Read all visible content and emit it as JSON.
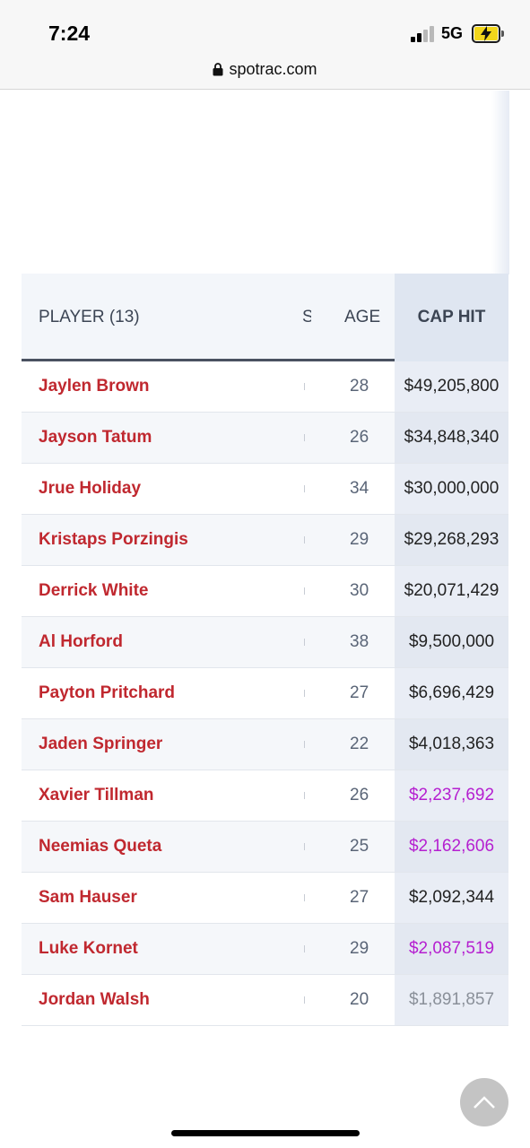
{
  "status_bar": {
    "time": "7:24",
    "network": "5G",
    "battery_charging": true,
    "signal_bars_filled": 2,
    "signal_bars_total": 4
  },
  "browser": {
    "url": "spotrac.com"
  },
  "table": {
    "headers": {
      "player": "PLAYER (13)",
      "partial": "S",
      "age": "AGE",
      "cap_hit": "CAP HIT"
    },
    "rows": [
      {
        "player": "Jaylen Brown",
        "age": "28",
        "cap_hit": "$49,205,800",
        "style": "normal"
      },
      {
        "player": "Jayson Tatum",
        "age": "26",
        "cap_hit": "$34,848,340",
        "style": "normal"
      },
      {
        "player": "Jrue Holiday",
        "age": "34",
        "cap_hit": "$30,000,000",
        "style": "normal"
      },
      {
        "player": "Kristaps Porzingis",
        "age": "29",
        "cap_hit": "$29,268,293",
        "style": "normal"
      },
      {
        "player": "Derrick White",
        "age": "30",
        "cap_hit": "$20,071,429",
        "style": "normal"
      },
      {
        "player": "Al Horford",
        "age": "38",
        "cap_hit": "$9,500,000",
        "style": "normal"
      },
      {
        "player": "Payton Pritchard",
        "age": "27",
        "cap_hit": "$6,696,429",
        "style": "normal"
      },
      {
        "player": "Jaden Springer",
        "age": "22",
        "cap_hit": "$4,018,363",
        "style": "normal"
      },
      {
        "player": "Xavier Tillman",
        "age": "26",
        "cap_hit": "$2,237,692",
        "style": "purple"
      },
      {
        "player": "Neemias Queta",
        "age": "25",
        "cap_hit": "$2,162,606",
        "style": "purple"
      },
      {
        "player": "Sam Hauser",
        "age": "27",
        "cap_hit": "$2,092,344",
        "style": "normal"
      },
      {
        "player": "Luke Kornet",
        "age": "29",
        "cap_hit": "$2,087,519",
        "style": "purple"
      },
      {
        "player": "Jordan Walsh",
        "age": "20",
        "cap_hit": "$1,891,857",
        "style": "muted"
      }
    ]
  },
  "colors": {
    "player_link": "#c0282f",
    "cap_hit_highlight": "#b51fd0",
    "cap_hit_muted": "#8a9099"
  },
  "icons": {
    "lock": "lock-icon",
    "scroll_top": "chevron-up-icon"
  }
}
